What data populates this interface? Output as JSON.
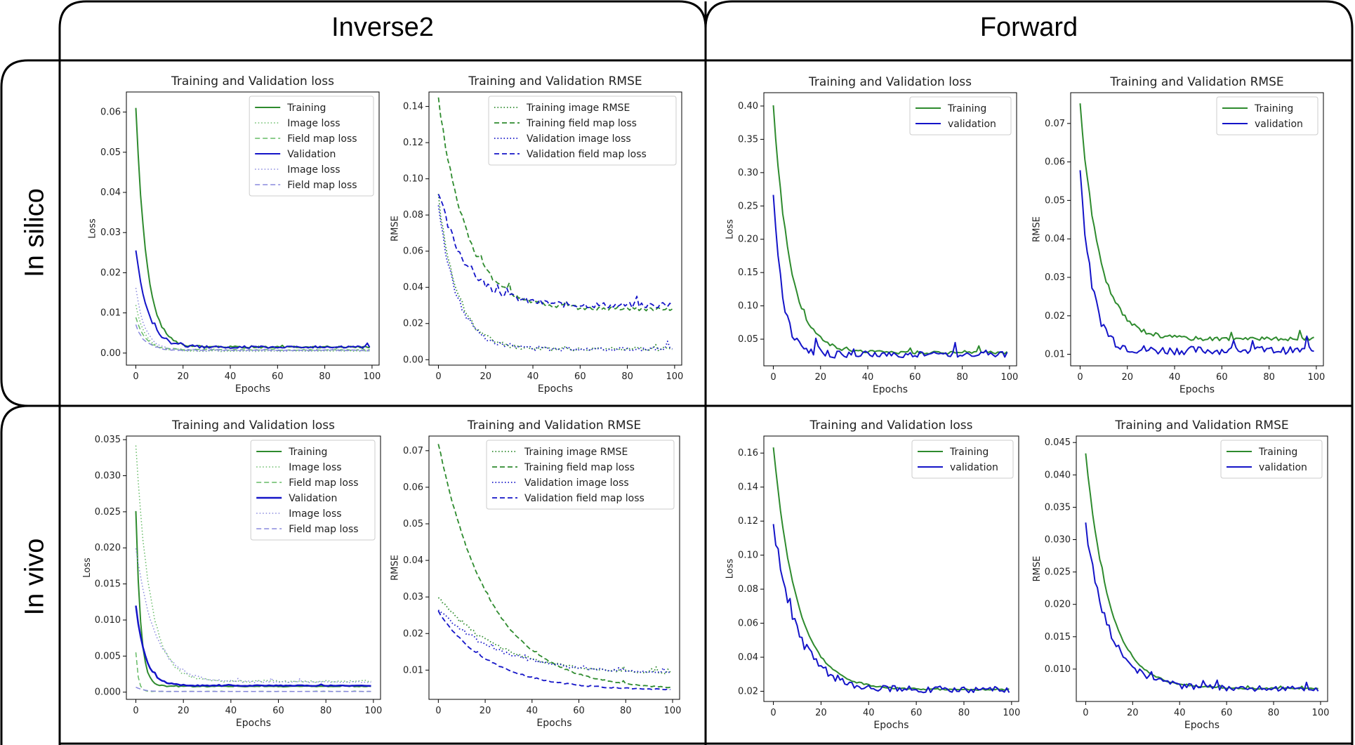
{
  "columns": {
    "inverse2": "Inverse2",
    "forward": "Forward"
  },
  "rows": {
    "in_silico": "In silico",
    "in_vivo": "In vivo"
  },
  "colors": {
    "green": "#2e8b2e",
    "blue": "#1414c8",
    "green_light": "#66bb66",
    "blue_light": "#8888dd",
    "frame": "#000000"
  },
  "chart_data": [
    {
      "id": "silico_inv_loss",
      "type": "line",
      "title": "Training and Validation loss",
      "xlabel": "Epochs",
      "ylabel": "Loss",
      "xlim": [
        -4,
        103
      ],
      "ylim": [
        -0.003,
        0.065
      ],
      "xticks": [
        0,
        20,
        40,
        60,
        80,
        100
      ],
      "xtick_labels": [
        "0",
        "20",
        "40",
        "60",
        "80",
        "100"
      ],
      "yticks": [
        0.0,
        0.01,
        0.02,
        0.03,
        0.04,
        0.05,
        0.06
      ],
      "ytick_labels": [
        "0.00",
        "0.01",
        "0.02",
        "0.03",
        "0.04",
        "0.05",
        "0.06"
      ],
      "legend_position": "top-right",
      "series": [
        {
          "name": "Training",
          "color": "green",
          "style": "solid",
          "width": 2,
          "curve": {
            "start": 0.061,
            "end": 0.0015,
            "tau": 4.5,
            "noise": 0.0004,
            "seed": 1
          }
        },
        {
          "name": "Image loss",
          "color": "green_light",
          "style": "dotted",
          "width": 1.5,
          "curve": {
            "start": 0.012,
            "end": 0.0005,
            "tau": 4,
            "noise": 0.0002,
            "seed": 2
          }
        },
        {
          "name": "Field map loss",
          "color": "green_light",
          "style": "dashed",
          "width": 1.5,
          "curve": {
            "start": 0.009,
            "end": 0.0008,
            "tau": 4,
            "noise": 0.0002,
            "seed": 3
          }
        },
        {
          "name": "Validation",
          "color": "blue",
          "style": "solid",
          "width": 2,
          "curve": {
            "start": 0.026,
            "end": 0.0015,
            "tau": 5,
            "noise": 0.0005,
            "seed": 4
          }
        },
        {
          "name": "Image loss",
          "color": "blue_light",
          "style": "dotted",
          "width": 1.5,
          "curve": {
            "start": 0.016,
            "end": 0.0006,
            "tau": 4,
            "noise": 0.0003,
            "seed": 5
          }
        },
        {
          "name": "Field map loss",
          "color": "blue_light",
          "style": "dashed",
          "width": 1.5,
          "curve": {
            "start": 0.007,
            "end": 0.0007,
            "tau": 4,
            "noise": 0.0002,
            "seed": 6
          }
        }
      ]
    },
    {
      "id": "silico_inv_rmse",
      "type": "line",
      "title": "Training and Validation RMSE",
      "xlabel": "Epochs",
      "ylabel": "RMSE",
      "xlim": [
        -4,
        103
      ],
      "ylim": [
        -0.003,
        0.148
      ],
      "xticks": [
        0,
        20,
        40,
        60,
        80,
        100
      ],
      "xtick_labels": [
        "0",
        "20",
        "40",
        "60",
        "80",
        "100"
      ],
      "yticks": [
        0.0,
        0.02,
        0.04,
        0.06,
        0.08,
        0.1,
        0.12,
        0.14
      ],
      "ytick_labels": [
        "0.00",
        "0.02",
        "0.04",
        "0.06",
        "0.08",
        "0.10",
        "0.12",
        "0.14"
      ],
      "legend_position": "top-right",
      "series": [
        {
          "name": "Training image RMSE",
          "color": "green",
          "style": "dotted",
          "width": 1.8,
          "curve": {
            "start": 0.09,
            "end": 0.006,
            "tau": 8,
            "noise": 0.002,
            "seed": 11
          }
        },
        {
          "name": "Training field map loss",
          "color": "green",
          "style": "dashed",
          "width": 1.8,
          "curve": {
            "start": 0.144,
            "end": 0.028,
            "tau": 12,
            "noise": 0.002,
            "seed": 12
          }
        },
        {
          "name": "Validation image loss",
          "color": "blue",
          "style": "dotted",
          "width": 1.8,
          "curve": {
            "start": 0.085,
            "end": 0.006,
            "tau": 8,
            "noise": 0.002,
            "seed": 13
          }
        },
        {
          "name": "Validation field map loss",
          "color": "blue",
          "style": "dashed",
          "width": 1.8,
          "curve": {
            "start": 0.092,
            "end": 0.03,
            "tau": 12,
            "noise": 0.003,
            "seed": 14
          }
        }
      ]
    },
    {
      "id": "silico_fwd_loss",
      "type": "line",
      "title": "Training and Validation loss",
      "xlabel": "Epochs",
      "ylabel": "Loss",
      "xlim": [
        -4,
        103
      ],
      "ylim": [
        0.01,
        0.42
      ],
      "xticks": [
        0,
        20,
        40,
        60,
        80,
        100
      ],
      "xtick_labels": [
        "0",
        "20",
        "40",
        "60",
        "80",
        "100"
      ],
      "yticks": [
        0.05,
        0.1,
        0.15,
        0.2,
        0.25,
        0.3,
        0.35,
        0.4
      ],
      "ytick_labels": [
        "0.05",
        "0.10",
        "0.15",
        "0.20",
        "0.25",
        "0.30",
        "0.35",
        "0.40"
      ],
      "legend_position": "top-right",
      "series": [
        {
          "name": "Training",
          "color": "green",
          "style": "solid",
          "width": 2,
          "curve": {
            "start": 0.403,
            "end": 0.03,
            "tau": 7,
            "noise": 0.004,
            "seed": 21
          }
        },
        {
          "name": "validation",
          "color": "blue",
          "style": "solid",
          "width": 2,
          "curve": {
            "start": 0.273,
            "end": 0.027,
            "tau": 4,
            "noise": 0.008,
            "seed": 22
          }
        }
      ]
    },
    {
      "id": "silico_fwd_rmse",
      "type": "line",
      "title": "Training and Validation RMSE",
      "xlabel": "Epochs",
      "ylabel": "RMSE",
      "xlim": [
        -4,
        103
      ],
      "ylim": [
        0.007,
        0.078
      ],
      "xticks": [
        0,
        20,
        40,
        60,
        80,
        100
      ],
      "xtick_labels": [
        "0",
        "20",
        "40",
        "60",
        "80",
        "100"
      ],
      "yticks": [
        0.01,
        0.02,
        0.03,
        0.04,
        0.05,
        0.06,
        0.07
      ],
      "ytick_labels": [
        "0.01",
        "0.02",
        "0.03",
        "0.04",
        "0.05",
        "0.06",
        "0.07"
      ],
      "legend_position": "top-right",
      "series": [
        {
          "name": "Training",
          "color": "green",
          "style": "solid",
          "width": 2,
          "curve": {
            "start": 0.075,
            "end": 0.014,
            "tau": 8,
            "noise": 0.0009,
            "seed": 31
          }
        },
        {
          "name": "validation",
          "color": "blue",
          "style": "solid",
          "width": 2,
          "curve": {
            "start": 0.058,
            "end": 0.011,
            "tau": 5,
            "noise": 0.0018,
            "seed": 32
          }
        }
      ]
    },
    {
      "id": "vivo_inv_loss",
      "type": "line",
      "title": "Training and Validation loss",
      "xlabel": "Epochs",
      "ylabel": "Loss",
      "xlim": [
        -4,
        103
      ],
      "ylim": [
        -0.001,
        0.0355
      ],
      "xticks": [
        0,
        20,
        40,
        60,
        80,
        100
      ],
      "xtick_labels": [
        "0",
        "20",
        "40",
        "60",
        "80",
        "100"
      ],
      "yticks": [
        0.0,
        0.005,
        0.01,
        0.015,
        0.02,
        0.025,
        0.03,
        0.035
      ],
      "ytick_labels": [
        "0.000",
        "0.005",
        "0.010",
        "0.015",
        "0.020",
        "0.025",
        "0.030",
        "0.035"
      ],
      "legend_position": "top-right",
      "series": [
        {
          "name": "Training",
          "color": "green",
          "style": "solid",
          "width": 2,
          "curve": {
            "start": 0.025,
            "end": 0.0008,
            "tau": 2,
            "noise": 0.0001,
            "seed": 41
          }
        },
        {
          "name": "Image loss",
          "color": "green_light",
          "style": "dotted",
          "width": 1.5,
          "curve": {
            "start": 0.034,
            "end": 0.0015,
            "tau": 6,
            "noise": 0.0003,
            "seed": 42
          }
        },
        {
          "name": "Field map loss",
          "color": "green_light",
          "style": "dashed",
          "width": 1.5,
          "curve": {
            "start": 0.0055,
            "end": 0.0001,
            "tau": 1,
            "noise": 3e-05,
            "seed": 43
          }
        },
        {
          "name": "Validation",
          "color": "blue",
          "style": "solid",
          "width": 2.5,
          "curve": {
            "start": 0.012,
            "end": 0.0009,
            "tau": 4,
            "noise": 0.0001,
            "seed": 44
          }
        },
        {
          "name": "Image loss",
          "color": "blue_light",
          "style": "dotted",
          "width": 1.5,
          "curve": {
            "start": 0.02,
            "end": 0.0014,
            "tau": 8,
            "noise": 0.0002,
            "seed": 45
          }
        },
        {
          "name": "Field map loss",
          "color": "blue_light",
          "style": "dashed",
          "width": 1.5,
          "curve": {
            "start": 0.0007,
            "end": 0.0001,
            "tau": 3,
            "noise": 2e-05,
            "seed": 46
          }
        }
      ]
    },
    {
      "id": "vivo_inv_rmse",
      "type": "line",
      "title": "Training and Validation RMSE",
      "xlabel": "Epochs",
      "ylabel": "RMSE",
      "xlim": [
        -4,
        103
      ],
      "ylim": [
        0.002,
        0.074
      ],
      "xticks": [
        0,
        20,
        40,
        60,
        80,
        100
      ],
      "xtick_labels": [
        "0",
        "20",
        "40",
        "60",
        "80",
        "100"
      ],
      "yticks": [
        0.01,
        0.02,
        0.03,
        0.04,
        0.05,
        0.06,
        0.07
      ],
      "ytick_labels": [
        "0.01",
        "0.02",
        "0.03",
        "0.04",
        "0.05",
        "0.06",
        "0.07"
      ],
      "legend_position": "top-right",
      "series": [
        {
          "name": "Training image RMSE",
          "color": "green",
          "style": "dotted",
          "width": 1.8,
          "curve": {
            "start": 0.03,
            "end": 0.0088,
            "tau": 25,
            "noise": 0.0006,
            "seed": 51
          }
        },
        {
          "name": "Training field map loss",
          "color": "green",
          "style": "dashed",
          "width": 1.8,
          "curve": {
            "start": 0.072,
            "end": 0.0045,
            "tau": 22,
            "noise": 0.0003,
            "seed": 52
          }
        },
        {
          "name": "Validation image loss",
          "color": "blue",
          "style": "dotted",
          "width": 1.8,
          "curve": {
            "start": 0.027,
            "end": 0.009,
            "tau": 25,
            "noise": 0.0006,
            "seed": 53
          }
        },
        {
          "name": "Validation field map loss",
          "color": "blue",
          "style": "dashed",
          "width": 1.8,
          "curve": {
            "start": 0.026,
            "end": 0.0045,
            "tau": 22,
            "noise": 0.0003,
            "seed": 54
          }
        }
      ]
    },
    {
      "id": "vivo_fwd_loss",
      "type": "line",
      "title": "Training and Validation loss",
      "xlabel": "Epochs",
      "ylabel": "Loss",
      "xlim": [
        -4,
        103
      ],
      "ylim": [
        0.014,
        0.17
      ],
      "xticks": [
        0,
        20,
        40,
        60,
        80,
        100
      ],
      "xtick_labels": [
        "0",
        "20",
        "40",
        "60",
        "80",
        "100"
      ],
      "yticks": [
        0.02,
        0.04,
        0.06,
        0.08,
        0.1,
        0.12,
        0.14,
        0.16
      ],
      "ytick_labels": [
        "0.02",
        "0.04",
        "0.06",
        "0.08",
        "0.10",
        "0.12",
        "0.14",
        "0.16"
      ],
      "legend_position": "top-right",
      "series": [
        {
          "name": "Training",
          "color": "green",
          "style": "solid",
          "width": 2,
          "curve": {
            "start": 0.163,
            "end": 0.021,
            "tau": 10,
            "noise": 0.0008,
            "seed": 61
          }
        },
        {
          "name": "validation",
          "color": "blue",
          "style": "solid",
          "width": 2,
          "curve": {
            "start": 0.118,
            "end": 0.021,
            "tau": 10,
            "noise": 0.0035,
            "seed": 62
          }
        }
      ]
    },
    {
      "id": "vivo_fwd_rmse",
      "type": "line",
      "title": "Training and Validation RMSE",
      "xlabel": "Epochs",
      "ylabel": "RMSE",
      "xlim": [
        -4,
        103
      ],
      "ylim": [
        0.005,
        0.046
      ],
      "xticks": [
        0,
        20,
        40,
        60,
        80,
        100
      ],
      "xtick_labels": [
        "0",
        "20",
        "40",
        "60",
        "80",
        "100"
      ],
      "yticks": [
        0.01,
        0.015,
        0.02,
        0.025,
        0.03,
        0.035,
        0.04,
        0.045
      ],
      "ytick_labels": [
        "0.010",
        "0.015",
        "0.020",
        "0.025",
        "0.030",
        "0.035",
        "0.040",
        "0.045"
      ],
      "legend_position": "top-right",
      "series": [
        {
          "name": "Training",
          "color": "green",
          "style": "solid",
          "width": 2,
          "curve": {
            "start": 0.0435,
            "end": 0.007,
            "tau": 10,
            "noise": 0.0002,
            "seed": 71
          }
        },
        {
          "name": "validation",
          "color": "blue",
          "style": "solid",
          "width": 2,
          "curve": {
            "start": 0.032,
            "end": 0.007,
            "tau": 10,
            "noise": 0.0008,
            "seed": 72
          }
        }
      ]
    }
  ]
}
